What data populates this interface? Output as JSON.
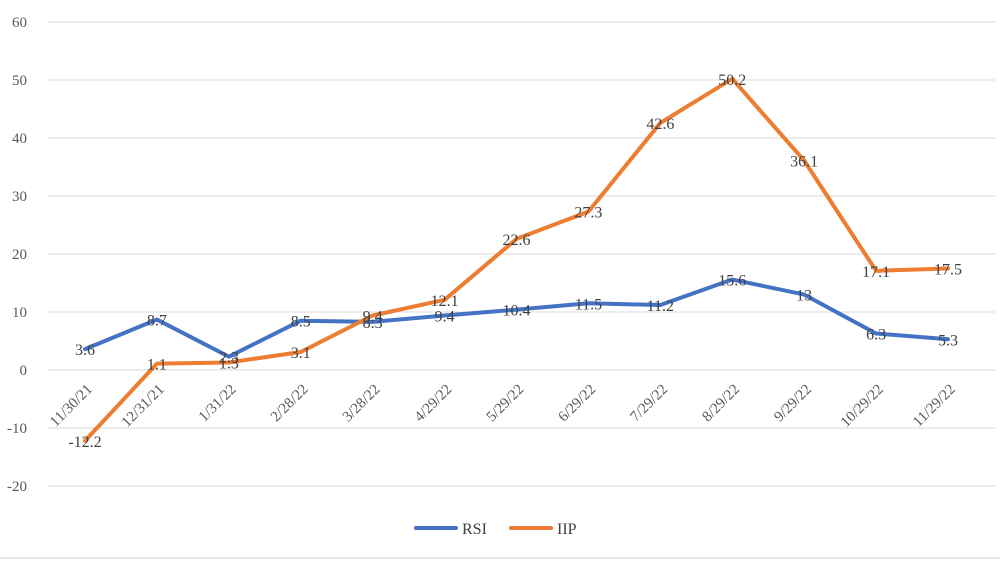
{
  "chart_data": {
    "type": "line",
    "title": "",
    "xlabel": "",
    "ylabel": "",
    "categories": [
      "11/30/21",
      "12/31/21",
      "1/31/22",
      "2/28/22",
      "3/28/22",
      "4/29/22",
      "5/29/22",
      "6/29/22",
      "7/29/22",
      "8/29/22",
      "9/29/22",
      "10/29/22",
      "11/29/22"
    ],
    "ylim": [
      -20,
      60
    ],
    "yticks": [
      -20,
      -10,
      0,
      10,
      20,
      30,
      40,
      50,
      60
    ],
    "grid": true,
    "legend_position": "bottom",
    "series": [
      {
        "name": "RSI",
        "color": "#4472c4",
        "values": [
          3.6,
          8.7,
          2.3,
          8.5,
          8.3,
          9.4,
          10.4,
          11.5,
          11.2,
          15.6,
          13,
          6.3,
          5.3
        ]
      },
      {
        "name": "IIP",
        "color": "#ed7d31",
        "values": [
          -12.2,
          1.1,
          1.3,
          3.1,
          9.4,
          12.1,
          22.6,
          27.3,
          42.6,
          50.2,
          36.1,
          17.1,
          17.5
        ]
      }
    ]
  }
}
